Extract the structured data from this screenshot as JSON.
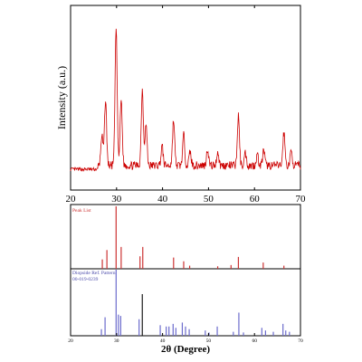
{
  "chart_data": [
    {
      "type": "line",
      "ylabel": "Intensity (a.u.)",
      "xlim": [
        20,
        70
      ],
      "x_ticks": [
        "20",
        "30",
        "40",
        "50",
        "60",
        "70"
      ],
      "y_ticks": false,
      "grid": false,
      "line_color": "#cc0000",
      "peaks": [
        {
          "x": 26.8,
          "y": 22
        },
        {
          "x": 27.6,
          "y": 48
        },
        {
          "x": 29.9,
          "y": 100
        },
        {
          "x": 31.0,
          "y": 48
        },
        {
          "x": 35.6,
          "y": 55
        },
        {
          "x": 36.4,
          "y": 30
        },
        {
          "x": 39.9,
          "y": 14
        },
        {
          "x": 42.4,
          "y": 33
        },
        {
          "x": 44.6,
          "y": 22
        },
        {
          "x": 46.0,
          "y": 10
        },
        {
          "x": 49.8,
          "y": 12
        },
        {
          "x": 52.0,
          "y": 10
        },
        {
          "x": 56.5,
          "y": 36
        },
        {
          "x": 58.0,
          "y": 9
        },
        {
          "x": 60.6,
          "y": 8
        },
        {
          "x": 62.0,
          "y": 11
        },
        {
          "x": 66.4,
          "y": 24
        },
        {
          "x": 68.0,
          "y": 10
        }
      ]
    },
    {
      "type": "bar",
      "series": [
        {
          "name": "Peak List",
          "color": "#cc3333",
          "x": [
            26.9,
            27.9,
            29.9,
            31.0,
            35.1,
            35.7,
            42.4,
            44.6,
            45.9,
            52.0,
            54.9,
            56.5,
            61.9,
            66.4
          ],
          "values": [
            15,
            30,
            100,
            35,
            20,
            35,
            18,
            12,
            5,
            4,
            6,
            19,
            10,
            5
          ]
        },
        {
          "name": "Diopside Ref. Pattern",
          "name_line2": "00-019-0239",
          "color": "#6b6bcc",
          "x": [
            26.7,
            27.5,
            29.9,
            30.4,
            30.9,
            34.9,
            35.6,
            39.5,
            40.8,
            41.4,
            42.3,
            42.9,
            44.3,
            45.0,
            45.8,
            49.3,
            50.1,
            51.9,
            55.4,
            56.6,
            57.6,
            61.6,
            62.4,
            64.1,
            66.2,
            66.8,
            67.6
          ],
          "values": [
            10,
            28,
            100,
            32,
            30,
            25,
            63,
            16,
            14,
            14,
            18,
            12,
            20,
            14,
            10,
            8,
            5,
            14,
            6,
            35,
            5,
            12,
            8,
            6,
            18,
            8,
            6
          ],
          "highlight_x": 35.6,
          "highlight_color": "#1a1a1a"
        }
      ],
      "xlabel": "2θ (Degree)",
      "xlim": [
        20,
        70
      ],
      "x_ticks": [
        "20",
        "30",
        "40",
        "50",
        "60",
        "70"
      ]
    }
  ]
}
